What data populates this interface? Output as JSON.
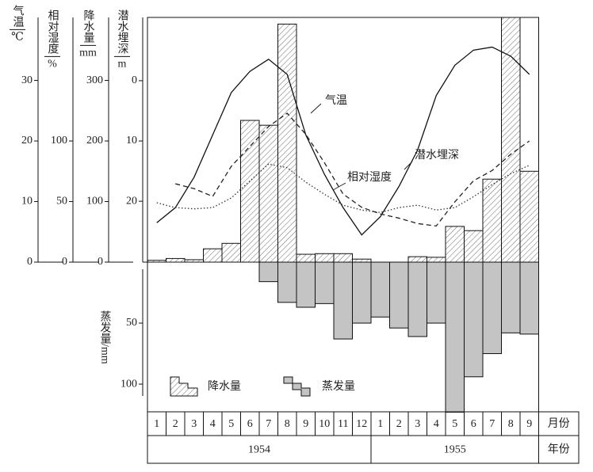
{
  "chart_data": {
    "type": "bar",
    "categories": [
      "1",
      "2",
      "3",
      "4",
      "5",
      "6",
      "7",
      "8",
      "9",
      "10",
      "11",
      "12",
      "1",
      "2",
      "3",
      "4",
      "5",
      "6",
      "7",
      "8",
      "9"
    ],
    "years": [
      "1954",
      "1955"
    ],
    "month_header": "月份",
    "year_header": "年份",
    "axes": {
      "y": {
        "label": "气温",
        "unit": "℃",
        "lim": [
          0,
          40.4
        ],
        "ticks": [
          0,
          10,
          20,
          30
        ]
      },
      "y2": {
        "label": "相对湿度",
        "unit": "%",
        "lim": [
          0,
          202
        ],
        "ticks": [
          0,
          50,
          100
        ]
      },
      "y3": {
        "label": "降水量",
        "unit": "mm",
        "lim": [
          0,
          404
        ],
        "ticks": [
          0,
          100,
          200,
          300
        ]
      },
      "y4": {
        "label": "潜水埋深",
        "unit": "m",
        "lim": [
          30.1,
          -10.5
        ],
        "ticks": [
          0,
          10,
          20
        ]
      },
      "y5": {
        "label": "蒸发量/mm",
        "lim": [
          0,
          122.7
        ],
        "ticks": [
          50,
          100
        ]
      }
    },
    "series": [
      {
        "name": "降水量",
        "kind": "bar",
        "axis": "y3",
        "color": "#ffffff",
        "values": [
          3,
          6,
          4,
          22,
          31,
          234,
          226,
          393,
          13,
          14,
          14,
          5,
          0,
          0,
          9,
          8,
          59,
          52,
          137,
          404,
          150
        ]
      },
      {
        "name": "蒸发量",
        "kind": "bar",
        "axis": "y5",
        "color": "#c4c4c4",
        "values": [
          0,
          0,
          0,
          0,
          0,
          0,
          16,
          33,
          37,
          34,
          63,
          50,
          45,
          54,
          61,
          50,
          123,
          94,
          75,
          58,
          59
        ]
      },
      {
        "name": "气温",
        "kind": "line",
        "axis": "y",
        "color": "#111111",
        "dash": "none",
        "values": [
          6.5,
          9,
          14,
          21,
          28,
          31.5,
          33.5,
          31,
          21,
          14.5,
          9,
          4.5,
          7.5,
          12.5,
          18.5,
          27.5,
          32.5,
          35,
          35.5,
          34,
          31
        ]
      },
      {
        "name": "相对湿度",
        "kind": "line",
        "axis": "y2",
        "color": "#333333",
        "dash": "1.5 2.5",
        "values": [
          49,
          45,
          44,
          45,
          53,
          67,
          81,
          78,
          66,
          56,
          47,
          43,
          41,
          45,
          47,
          43,
          45,
          54,
          64,
          73,
          80
        ]
      },
      {
        "name": "潜水埋深",
        "kind": "line",
        "axis": "y4",
        "color": "#222222",
        "dash": "6 4",
        "values": [
          null,
          17.1,
          17.9,
          19.2,
          14.2,
          10.9,
          7.6,
          5.4,
          8.9,
          13.6,
          18.8,
          21,
          22.1,
          22.8,
          23.7,
          24.1,
          20.1,
          16.6,
          14.9,
          12.2,
          10
        ]
      }
    ]
  }
}
